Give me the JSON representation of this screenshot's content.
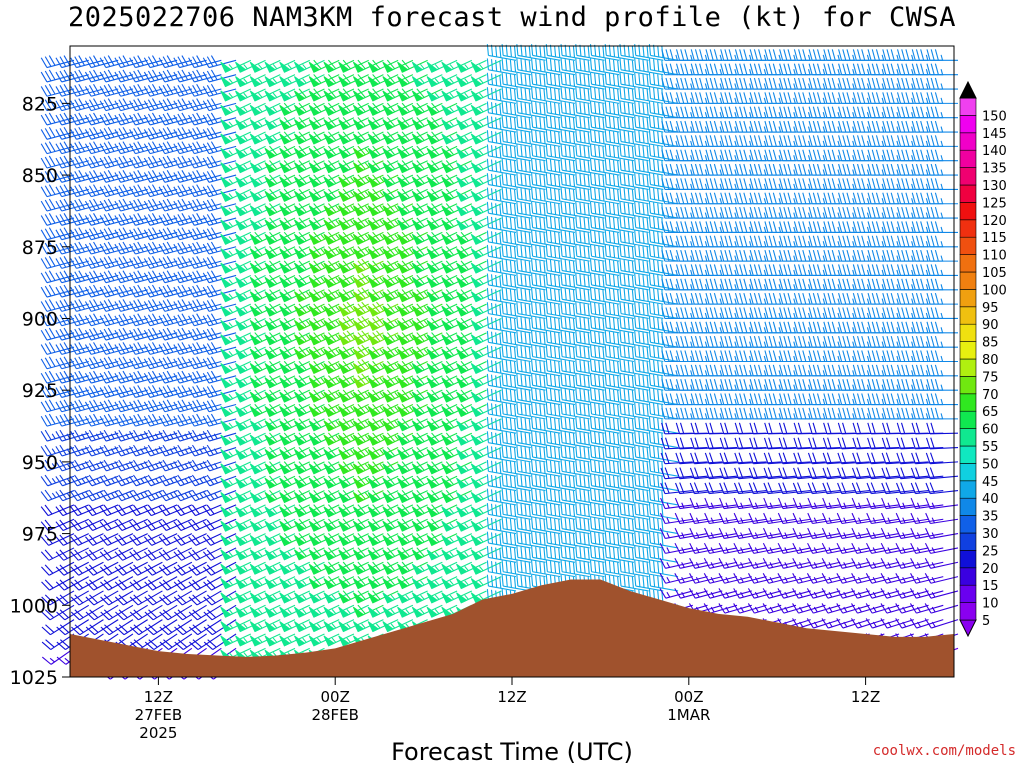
{
  "title": "2025022706 NAM3KM forecast wind profile (kt) for CWSA",
  "credit": "coolwx.com/models",
  "chart_data": {
    "type": "wind-barb-time-height",
    "xlabel": "Forecast Time (UTC)",
    "ylabel": "",
    "y_axis": {
      "ticks": [
        825,
        850,
        875,
        900,
        925,
        950,
        975,
        1000,
        1025
      ],
      "ylim_top": 805,
      "ylim_bottom": 1025
    },
    "x_axis": {
      "ticks": [
        {
          "label": "12Z",
          "sub1": "27FEB",
          "sub2": "2025",
          "hour": 6
        },
        {
          "label": "00Z",
          "sub1": "28FEB",
          "sub2": "",
          "hour": 18
        },
        {
          "label": "12Z",
          "sub1": "",
          "sub2": "",
          "hour": 30
        },
        {
          "label": "00Z",
          "sub1": "1MAR",
          "sub2": "",
          "hour": 42
        },
        {
          "label": "12Z",
          "sub1": "",
          "sub2": "",
          "hour": 54
        }
      ],
      "hour_range": [
        0,
        60
      ]
    },
    "colorbar": {
      "labels": [
        "5",
        "10",
        "15",
        "20",
        "25",
        "30",
        "35",
        "40",
        "45",
        "50",
        "55",
        "60",
        "65",
        "70",
        "75",
        "80",
        "85",
        "90",
        "95",
        "100",
        "105",
        "110",
        "115",
        "120",
        "125",
        "130",
        "135",
        "140",
        "145",
        "150"
      ],
      "colors": [
        "#8a00f0",
        "#6a00f0",
        "#3a00e0",
        "#1010d8",
        "#1040e0",
        "#1060e8",
        "#1088e8",
        "#10a8e8",
        "#10d0e0",
        "#10e8c0",
        "#10e890",
        "#10e850",
        "#30e820",
        "#70e810",
        "#b0f010",
        "#e8f010",
        "#f0e010",
        "#f0c010",
        "#f0a010",
        "#f08010",
        "#f07010",
        "#f05010",
        "#f03010",
        "#f01010",
        "#f00040",
        "#f00070",
        "#f000a0",
        "#f000c8",
        "#f000f0",
        "#f040f0"
      ],
      "max_color": "#000000"
    },
    "terrain_color": "#a0522d",
    "surface_pressure": [
      [
        0,
        1010
      ],
      [
        2,
        1012
      ],
      [
        4,
        1014
      ],
      [
        6,
        1016
      ],
      [
        8,
        1017
      ],
      [
        10,
        1017.5
      ],
      [
        12,
        1018
      ],
      [
        14,
        1017.5
      ],
      [
        16,
        1016.5
      ],
      [
        18,
        1015
      ],
      [
        20,
        1012
      ],
      [
        22,
        1009
      ],
      [
        24,
        1006
      ],
      [
        26,
        1003
      ],
      [
        28,
        998
      ],
      [
        30,
        996
      ],
      [
        32,
        993
      ],
      [
        34,
        991
      ],
      [
        36,
        991
      ],
      [
        38,
        995
      ],
      [
        40,
        998
      ],
      [
        42,
        1001
      ],
      [
        44,
        1003
      ],
      [
        46,
        1004
      ],
      [
        48,
        1006
      ],
      [
        50,
        1008
      ],
      [
        52,
        1009
      ],
      [
        54,
        1010
      ],
      [
        56,
        1011
      ],
      [
        58,
        1011
      ],
      [
        60,
        1010
      ]
    ],
    "time_step_hours": 1,
    "levels": [
      805,
      810,
      815,
      820,
      825,
      830,
      835,
      840,
      845,
      850,
      855,
      860,
      865,
      870,
      875,
      880,
      885,
      890,
      895,
      900,
      905,
      910,
      915,
      920,
      925,
      930,
      935,
      940,
      945,
      950,
      955,
      960,
      965,
      970,
      975,
      980,
      985,
      990,
      995,
      1000,
      1005,
      1010,
      1015,
      1020,
      1025
    ],
    "wind_field_regimes": [
      {
        "hours": [
          0,
          12
        ],
        "direction_deg": 255,
        "speed_kt": 30,
        "lower_levels_speed_kt": 25
      },
      {
        "hours": [
          12,
          30
        ],
        "direction_deg": 245,
        "speed_kt": 55,
        "max_speed_kt": 70
      },
      {
        "hours": [
          30,
          42
        ],
        "direction_deg": 280,
        "speed_kt": 42
      },
      {
        "hours": [
          42,
          60
        ],
        "direction_deg": 270,
        "speed_kt": 35,
        "lower_levels_speed_kt": 20
      }
    ]
  }
}
